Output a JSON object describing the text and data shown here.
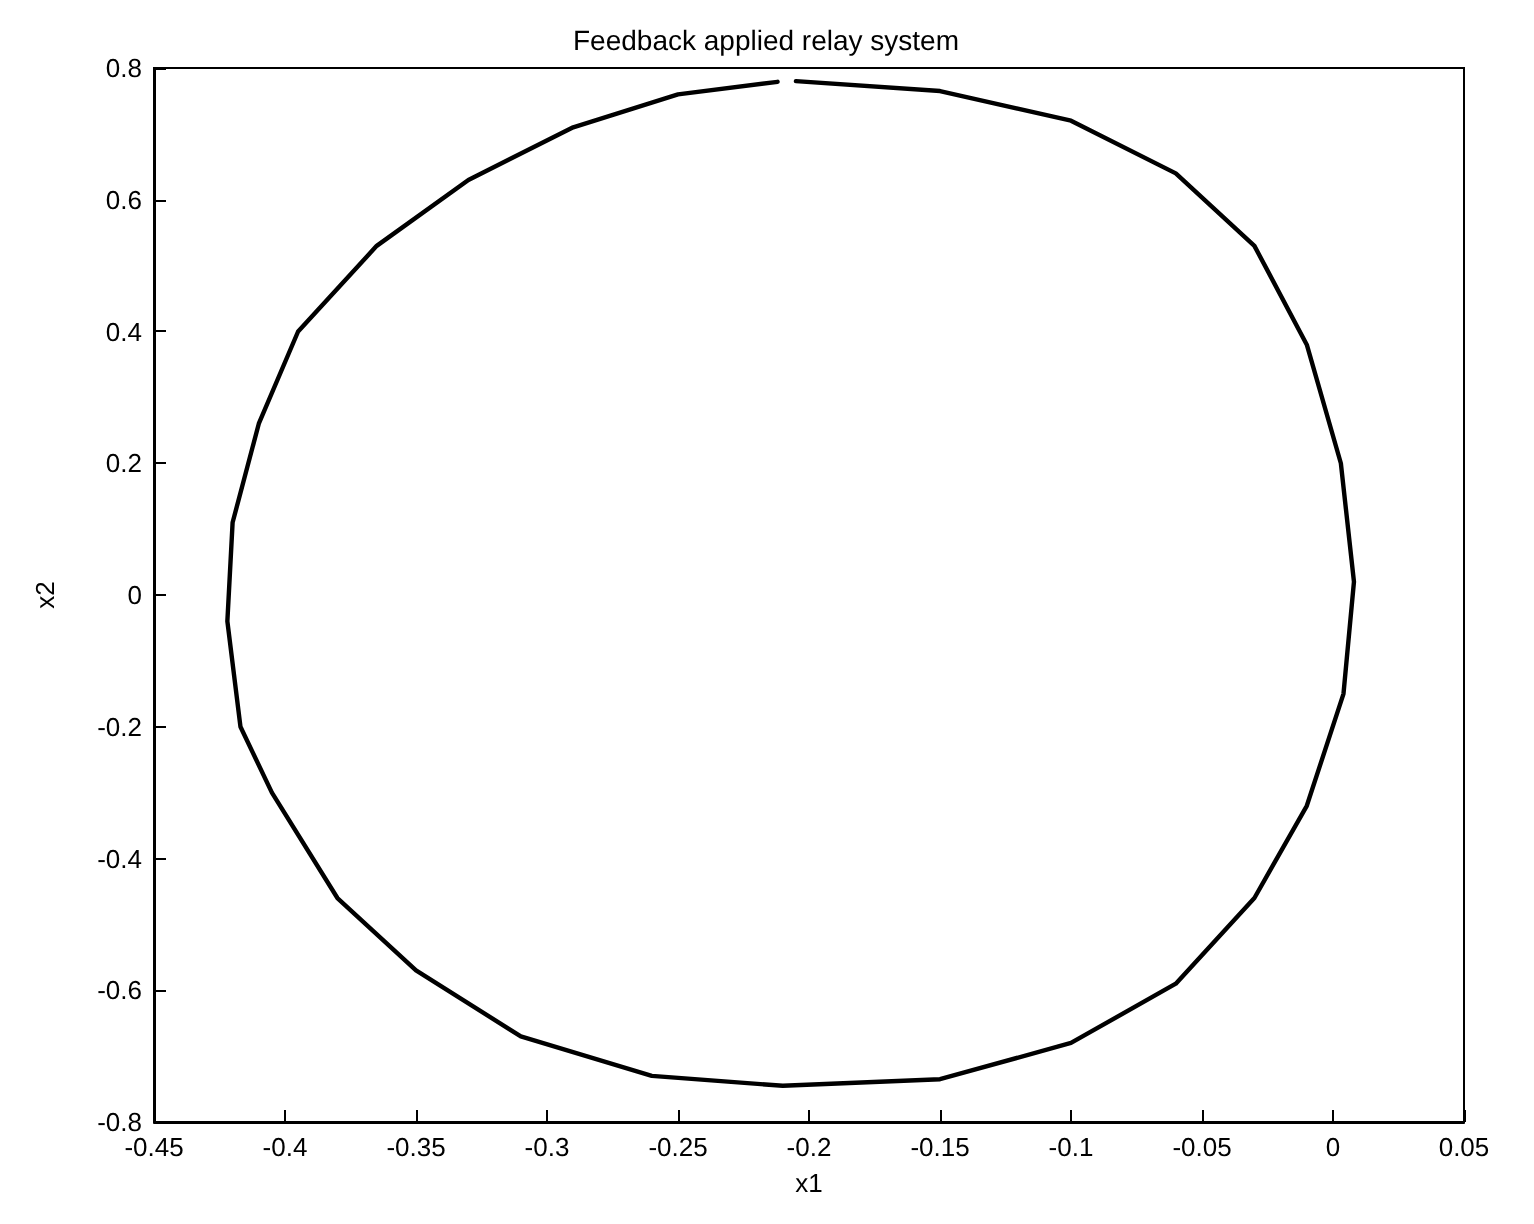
{
  "chart_data": {
    "type": "line",
    "title": "Feedback applied relay system",
    "xlabel": "x1",
    "ylabel": "x2",
    "xlim": [
      -0.45,
      0.05
    ],
    "xticks": [
      -0.45,
      -0.4,
      -0.35,
      -0.3,
      -0.25,
      -0.2,
      -0.15,
      -0.1,
      -0.05,
      0,
      0.05
    ],
    "ylim": [
      -0.8,
      0.8
    ],
    "yticks": [
      -0.8,
      -0.6,
      -0.4,
      -0.2,
      0,
      0.2,
      0.4,
      0.6,
      0.8
    ],
    "grid": false,
    "marker": "none",
    "line_style": "solid",
    "series": [
      {
        "color": "#000000",
        "x": [
          -0.205,
          -0.15,
          -0.1,
          -0.06,
          -0.03,
          -0.01,
          0.003,
          0.008,
          0.004,
          -0.01,
          -0.03,
          -0.06,
          -0.1,
          -0.15,
          -0.21,
          -0.26,
          -0.31,
          -0.35,
          -0.38,
          -0.405,
          -0.417,
          -0.422,
          -0.42,
          -0.41,
          -0.395,
          -0.365,
          -0.33,
          -0.29,
          -0.25,
          -0.212
        ],
        "values": [
          0.78,
          0.765,
          0.72,
          0.64,
          0.53,
          0.38,
          0.2,
          0.02,
          -0.15,
          -0.32,
          -0.46,
          -0.59,
          -0.68,
          -0.735,
          -0.745,
          -0.73,
          -0.67,
          -0.57,
          -0.46,
          -0.3,
          -0.2,
          -0.04,
          0.11,
          0.26,
          0.4,
          0.53,
          0.63,
          0.71,
          0.76,
          0.779
        ]
      }
    ]
  }
}
